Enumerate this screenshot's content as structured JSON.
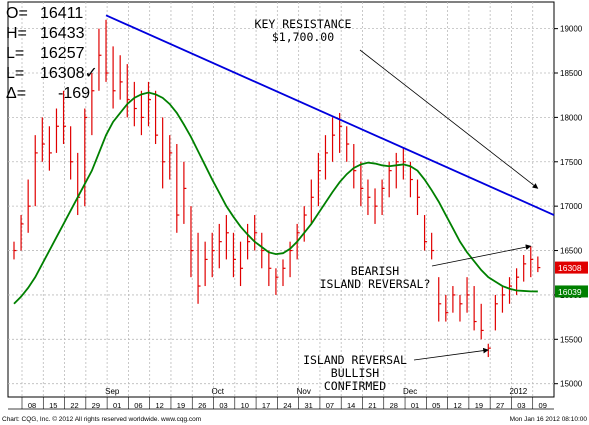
{
  "ohlc_header": {
    "open": {
      "label": "O=",
      "value": "16411"
    },
    "high": {
      "label": "H=",
      "value": "16433"
    },
    "low": {
      "label": "L=",
      "value": "16257"
    },
    "last": {
      "label": "L=",
      "value": "16308✓"
    },
    "delta": {
      "label": "Δ=",
      "value": "-169"
    }
  },
  "footer": {
    "copyright": "Chart: CQG, Inc. © 2012 All rights reserved worldwide. www.cqg.com",
    "timestamp": "Mon Jan 16 2012 08:10:00"
  },
  "colors": {
    "bars": "#e00000",
    "trendline": "#0000dd",
    "moving_average": "#008000",
    "last_price_tag": "#e00000",
    "ma_price_tag": "#008000"
  },
  "chart_data": {
    "type": "ohlc",
    "y_range": [
      14850,
      19300
    ],
    "y_ticks": [
      15000,
      15500,
      16000,
      16500,
      17000,
      17500,
      18000,
      18500,
      19000
    ],
    "y_tick_labels": [
      "15000",
      "15500",
      "16000",
      "16500",
      "17000",
      "17500",
      "18000",
      "18500",
      "19000"
    ],
    "x_ticks": [
      "08",
      "15",
      "22",
      "29",
      "01",
      "06",
      "12",
      "19",
      "26",
      "03",
      "10",
      "17",
      "24",
      "31",
      "07",
      "14",
      "21",
      "28",
      "01",
      "05",
      "12",
      "19",
      "27",
      "03",
      "09"
    ],
    "month_labels": [
      {
        "label": "Sep",
        "at": "01"
      },
      {
        "label": "Oct",
        "at": "03"
      },
      {
        "label": "Nov",
        "at": "31"
      },
      {
        "label": "Dec",
        "at": "01"
      },
      {
        "label": "2012",
        "at": "03"
      }
    ],
    "price_tags": [
      {
        "name": "last",
        "value": 16308,
        "label": "16308"
      },
      {
        "name": "moving-average",
        "value": 16039,
        "label": "16039"
      }
    ],
    "bars": [
      {
        "h": 16600,
        "l": 16400,
        "c": 16500
      },
      {
        "h": 16900,
        "l": 16500,
        "c": 16800
      },
      {
        "h": 17300,
        "l": 16700,
        "c": 17000
      },
      {
        "h": 17800,
        "l": 17000,
        "c": 17600
      },
      {
        "h": 18000,
        "l": 17500,
        "c": 17700
      },
      {
        "h": 17900,
        "l": 17400,
        "c": 17600
      },
      {
        "h": 18100,
        "l": 17600,
        "c": 17900
      },
      {
        "h": 18300,
        "l": 17700,
        "c": 17900
      },
      {
        "h": 17900,
        "l": 17300,
        "c": 17500
      },
      {
        "h": 17600,
        "l": 16900,
        "c": 17100
      },
      {
        "h": 18100,
        "l": 17000,
        "c": 18000
      },
      {
        "h": 18500,
        "l": 17800,
        "c": 18300
      },
      {
        "h": 19000,
        "l": 18300,
        "c": 18700
      },
      {
        "h": 19100,
        "l": 18400,
        "c": 18500
      },
      {
        "h": 18800,
        "l": 18100,
        "c": 18300
      },
      {
        "h": 18700,
        "l": 18200,
        "c": 18400
      },
      {
        "h": 18600,
        "l": 18000,
        "c": 18200
      },
      {
        "h": 18400,
        "l": 17900,
        "c": 18100
      },
      {
        "h": 18300,
        "l": 17800,
        "c": 18000
      },
      {
        "h": 18400,
        "l": 17900,
        "c": 18200
      },
      {
        "h": 18300,
        "l": 17700,
        "c": 17800
      },
      {
        "h": 18000,
        "l": 17200,
        "c": 17500
      },
      {
        "h": 17800,
        "l": 17300,
        "c": 17600
      },
      {
        "h": 17700,
        "l": 16700,
        "c": 16900
      },
      {
        "h": 17500,
        "l": 16800,
        "c": 17200
      },
      {
        "h": 17000,
        "l": 16200,
        "c": 16500
      },
      {
        "h": 16700,
        "l": 15900,
        "c": 16100
      },
      {
        "h": 16600,
        "l": 16100,
        "c": 16400
      },
      {
        "h": 16700,
        "l": 16200,
        "c": 16500
      },
      {
        "h": 16800,
        "l": 16300,
        "c": 16600
      },
      {
        "h": 16900,
        "l": 16400,
        "c": 16700
      },
      {
        "h": 16700,
        "l": 16200,
        "c": 16400
      },
      {
        "h": 16600,
        "l": 16100,
        "c": 16300
      },
      {
        "h": 16800,
        "l": 16400,
        "c": 16600
      },
      {
        "h": 16900,
        "l": 16500,
        "c": 16700
      },
      {
        "h": 16700,
        "l": 16300,
        "c": 16500
      },
      {
        "h": 16500,
        "l": 16100,
        "c": 16300
      },
      {
        "h": 16300,
        "l": 16000,
        "c": 16200
      },
      {
        "h": 16400,
        "l": 16100,
        "c": 16300
      },
      {
        "h": 16600,
        "l": 16200,
        "c": 16500
      },
      {
        "h": 16800,
        "l": 16400,
        "c": 16700
      },
      {
        "h": 17000,
        "l": 16600,
        "c": 16900
      },
      {
        "h": 17300,
        "l": 16800,
        "c": 17100
      },
      {
        "h": 17600,
        "l": 17000,
        "c": 17400
      },
      {
        "h": 17800,
        "l": 17300,
        "c": 17600
      },
      {
        "h": 18000,
        "l": 17500,
        "c": 17800
      },
      {
        "h": 18050,
        "l": 17600,
        "c": 17900
      },
      {
        "h": 17900,
        "l": 17500,
        "c": 17700
      },
      {
        "h": 17700,
        "l": 17200,
        "c": 17400
      },
      {
        "h": 17500,
        "l": 17000,
        "c": 17200
      },
      {
        "h": 17300,
        "l": 16900,
        "c": 17100
      },
      {
        "h": 17200,
        "l": 16800,
        "c": 17000
      },
      {
        "h": 17300,
        "l": 16900,
        "c": 17200
      },
      {
        "h": 17500,
        "l": 17100,
        "c": 17400
      },
      {
        "h": 17600,
        "l": 17200,
        "c": 17500
      },
      {
        "h": 17650,
        "l": 17300,
        "c": 17500
      },
      {
        "h": 17500,
        "l": 17100,
        "c": 17300
      },
      {
        "h": 17300,
        "l": 16900,
        "c": 17100
      },
      {
        "h": 16900,
        "l": 16500,
        "c": 16600
      },
      {
        "h": 16700,
        "l": 16400,
        "c": 16500
      },
      {
        "h": 16200,
        "l": 15700,
        "c": 15900
      },
      {
        "h": 16000,
        "l": 15700,
        "c": 15800
      },
      {
        "h": 16100,
        "l": 15800,
        "c": 16000
      },
      {
        "h": 16000,
        "l": 15700,
        "c": 15900
      },
      {
        "h": 16200,
        "l": 15800,
        "c": 16000
      },
      {
        "h": 16100,
        "l": 15600,
        "c": 15700
      },
      {
        "h": 15900,
        "l": 15500,
        "c": 15600
      },
      {
        "h": 15450,
        "l": 15300,
        "c": 15400
      },
      {
        "h": 16000,
        "l": 15600,
        "c": 15900
      },
      {
        "h": 16100,
        "l": 15800,
        "c": 16000
      },
      {
        "h": 16200,
        "l": 15900,
        "c": 16100
      },
      {
        "h": 16300,
        "l": 16000,
        "c": 16200
      },
      {
        "h": 16450,
        "l": 16150,
        "c": 16350
      },
      {
        "h": 16550,
        "l": 16200,
        "c": 16400
      },
      {
        "h": 16433,
        "l": 16257,
        "c": 16308
      }
    ],
    "moving_average": [
      15900,
      15980,
      16080,
      16200,
      16350,
      16500,
      16650,
      16800,
      16950,
      17100,
      17250,
      17400,
      17600,
      17800,
      17950,
      18050,
      18150,
      18220,
      18260,
      18280,
      18260,
      18220,
      18150,
      18050,
      17920,
      17780,
      17620,
      17460,
      17300,
      17150,
      17000,
      16880,
      16770,
      16680,
      16600,
      16540,
      16480,
      16460,
      16470,
      16520,
      16600,
      16700,
      16800,
      16920,
      17040,
      17160,
      17270,
      17360,
      17430,
      17470,
      17490,
      17480,
      17460,
      17450,
      17460,
      17470,
      17450,
      17400,
      17300,
      17180,
      17050,
      16900,
      16750,
      16600,
      16480,
      16380,
      16280,
      16200,
      16150,
      16100,
      16070,
      16050,
      16045,
      16040,
      16039
    ],
    "trendline": {
      "from_bar": 13,
      "from_value": 19150,
      "to_bar": 76,
      "to_value": 16900,
      "label": "KEY RESISTANCE",
      "sublabel": "$1,700.00"
    },
    "annotations": [
      {
        "name": "key-resistance",
        "lines": [
          "KEY RESISTANCE",
          "$1,700.00"
        ],
        "arrow_to_bar": 74,
        "arrow_to_value": 17200
      },
      {
        "name": "bearish-island-reversal",
        "lines": [
          "BEARISH",
          "ISLAND REVERSAL?"
        ],
        "arrow_to_bar": 73,
        "arrow_to_value": 16550
      },
      {
        "name": "island-reversal-bullish",
        "lines": [
          "ISLAND REVERSAL",
          "BULLISH",
          "CONFIRMED"
        ],
        "arrow_to_bar": 67,
        "arrow_to_value": 15380
      }
    ]
  }
}
